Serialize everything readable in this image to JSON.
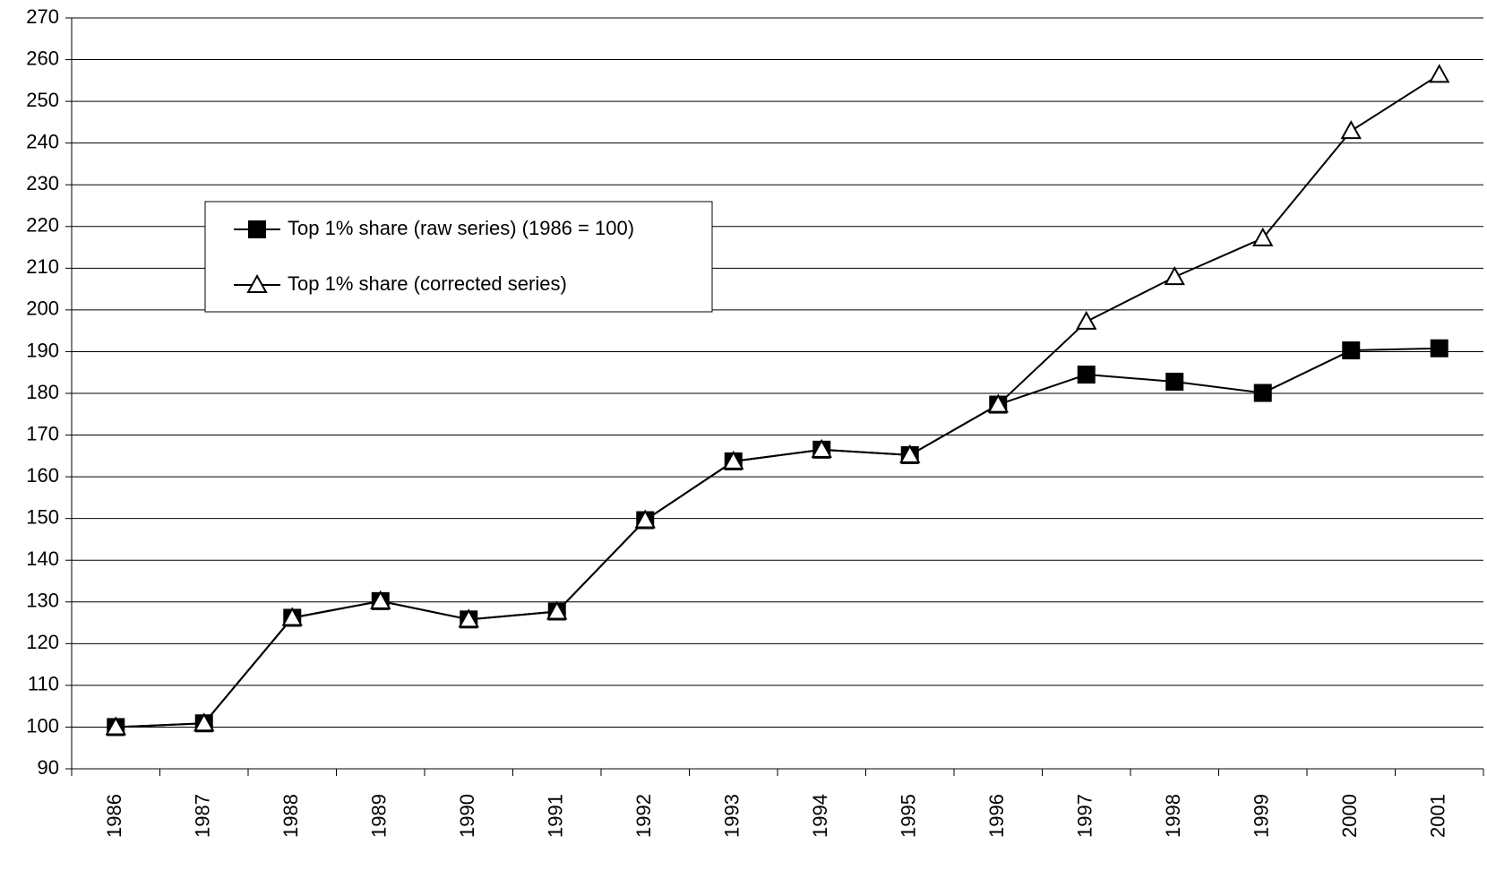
{
  "chart_data": {
    "type": "line",
    "categories": [
      "1986",
      "1987",
      "1988",
      "1989",
      "1990",
      "1991",
      "1992",
      "1993",
      "1994",
      "1995",
      "1996",
      "1997",
      "1998",
      "1999",
      "2000",
      "2001"
    ],
    "series": [
      {
        "name": "Top 1% share (raw series) (1986 = 100)",
        "color": "#000000",
        "marker": "square",
        "marker_fill": "#000000",
        "values": [
          100,
          100.9,
          126.2,
          130.2,
          125.8,
          127.7,
          149.6,
          163.7,
          166.5,
          165.2,
          177.3,
          184.5,
          182.8,
          180.1,
          190.3,
          190.8
        ]
      },
      {
        "name": "Top 1% share (corrected series)",
        "color": "#000000",
        "marker": "triangle",
        "marker_fill": "#ffffff",
        "values": [
          100,
          100.9,
          126.2,
          130.2,
          125.8,
          127.7,
          149.6,
          163.7,
          166.5,
          165.2,
          177.3,
          197.2,
          207.9,
          217.2,
          242.9,
          256.4
        ]
      }
    ],
    "ylim": [
      90,
      270
    ],
    "yticks": [
      90,
      100,
      110,
      120,
      130,
      140,
      150,
      160,
      170,
      180,
      190,
      200,
      210,
      220,
      230,
      240,
      250,
      260,
      270
    ],
    "grid": true,
    "legend": "upper left"
  }
}
